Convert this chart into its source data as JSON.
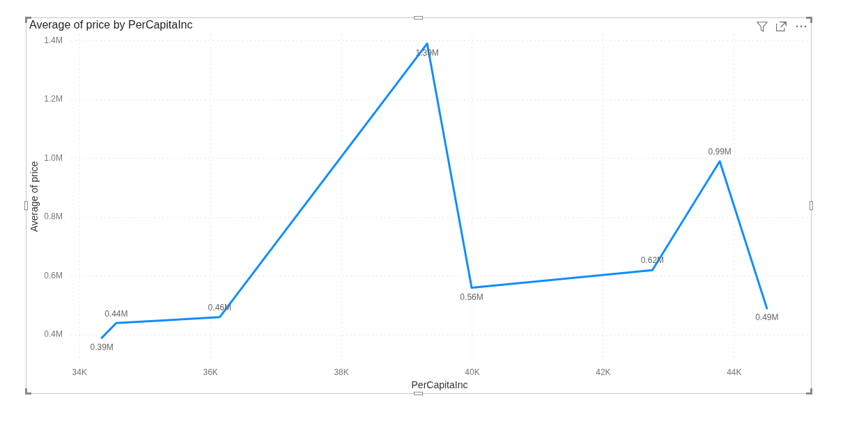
{
  "chart_data": {
    "type": "line",
    "title": "Average of price by PerCapitaInc",
    "xlabel": "PerCapitaInc",
    "ylabel": "Average of price",
    "x": [
      34340,
      34560,
      36140,
      39310,
      39990,
      42750,
      43780,
      44500
    ],
    "values": [
      390000,
      440000,
      460000,
      1390000,
      560000,
      620000,
      990000,
      490000
    ],
    "value_labels": [
      "0.39M",
      "0.44M",
      "0.46M",
      "1.39M",
      "0.56M",
      "0.62M",
      "0.99M",
      "0.49M"
    ],
    "color": "#118dff",
    "xlim": [
      33870,
      45130
    ],
    "ylim": [
      320000,
      1420000
    ],
    "xticks": [
      {
        "value": 34000,
        "label": "34K"
      },
      {
        "value": 36000,
        "label": "36K"
      },
      {
        "value": 38000,
        "label": "38K"
      },
      {
        "value": 40000,
        "label": "40K"
      },
      {
        "value": 42000,
        "label": "42K"
      },
      {
        "value": 44000,
        "label": "44K"
      }
    ],
    "yticks": [
      {
        "value": 400000,
        "label": "0.4M"
      },
      {
        "value": 600000,
        "label": "0.6M"
      },
      {
        "value": 800000,
        "label": "0.8M"
      },
      {
        "value": 1000000,
        "label": "1.0M"
      },
      {
        "value": 1200000,
        "label": "1.2M"
      },
      {
        "value": 1400000,
        "label": "1.4M"
      }
    ],
    "grid": true,
    "marker": "none",
    "line_style": "solid"
  }
}
